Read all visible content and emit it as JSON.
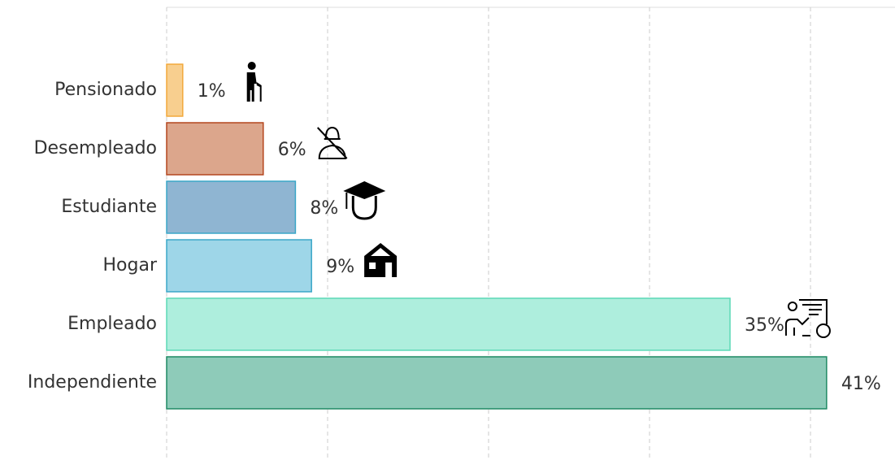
{
  "chart_data": {
    "type": "barh",
    "categories": [
      "Pensionado",
      "Desempleado",
      "Estudiante",
      "Hogar",
      "Empleado",
      "Independiente"
    ],
    "values": [
      1,
      6,
      8,
      9,
      35,
      41
    ],
    "value_labels": [
      "1%",
      "6%",
      "8%",
      "9%",
      "35%",
      "41%"
    ],
    "colors": [
      "#f8cf8f",
      "#dca68c",
      "#8fb5d2",
      "#9ed6e8",
      "#aeeedd",
      "#8ecbb9"
    ],
    "edge_colors": [
      "#f2a93b",
      "#b4461e",
      "#3aa7c8",
      "#3aa7c8",
      "#5cd9b6",
      "#1f8a64"
    ],
    "xlim": [
      0,
      45.25
    ],
    "xticks": [
      0,
      10,
      20,
      30,
      40
    ],
    "grid": true
  }
}
